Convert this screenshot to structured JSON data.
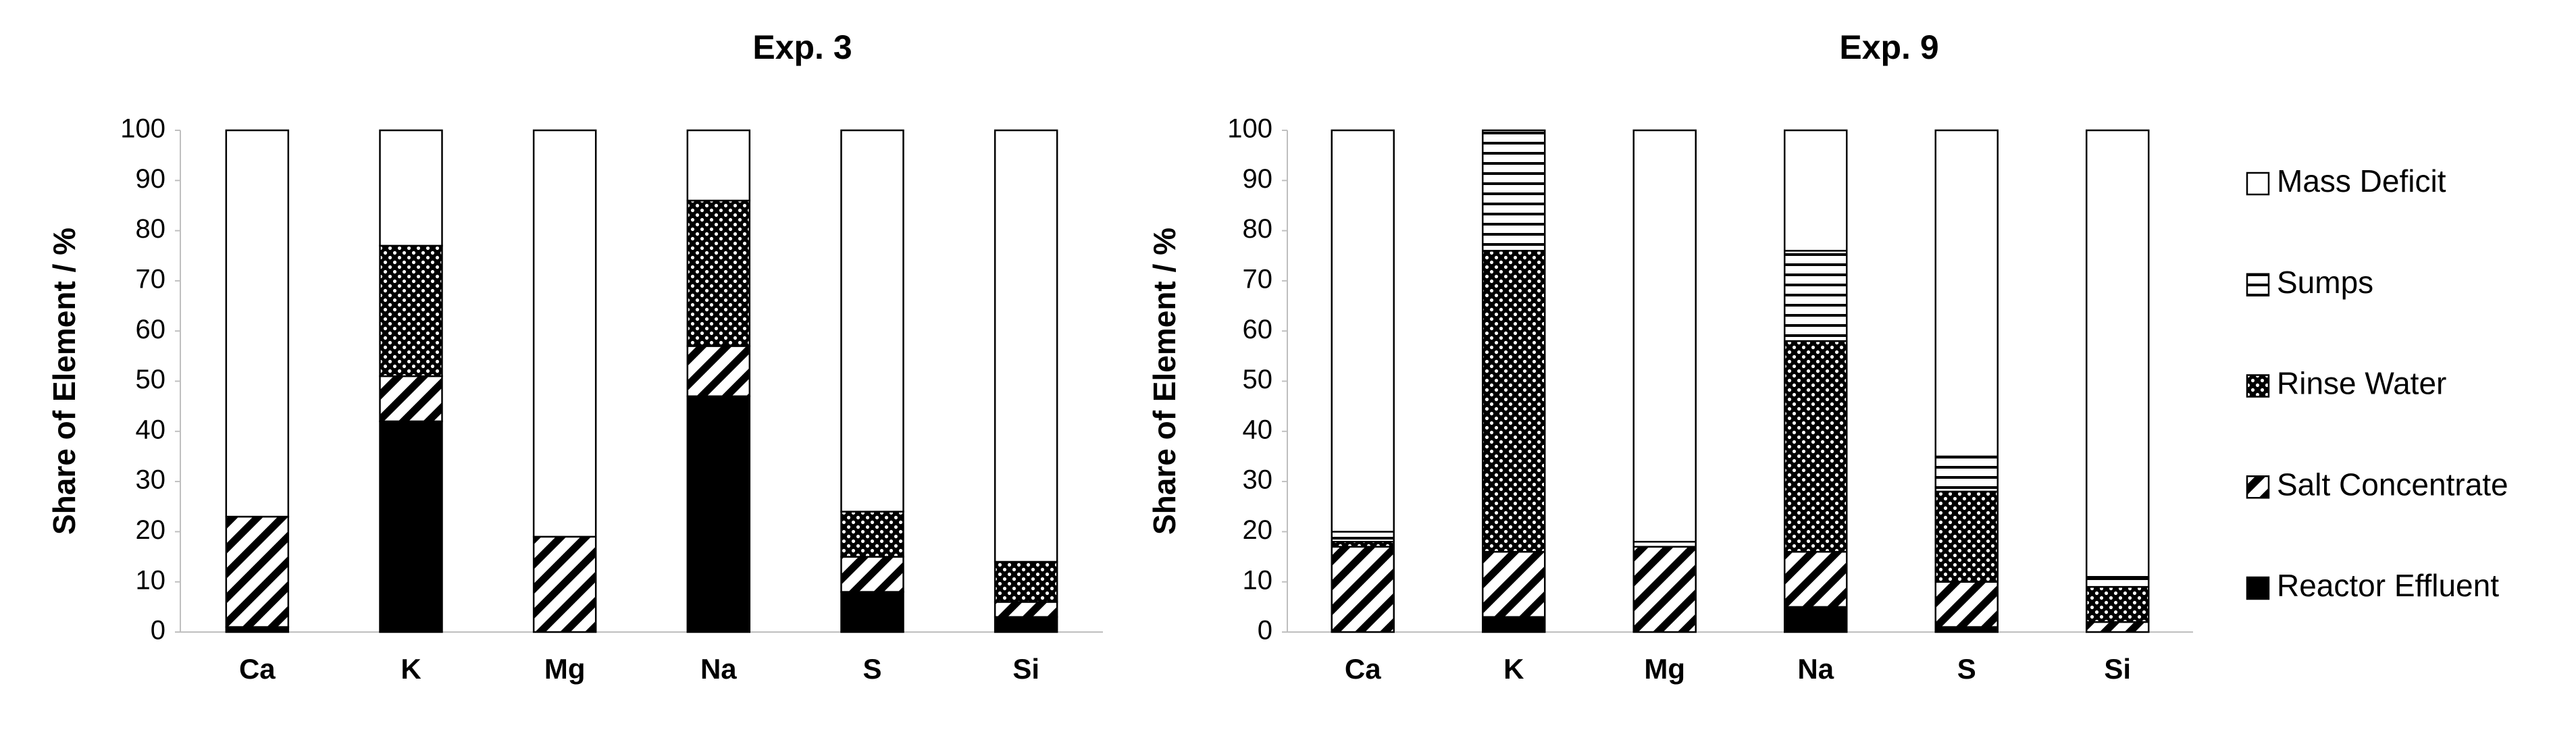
{
  "chart_data": [
    {
      "type": "stacked_bar",
      "title": "Exp. 3",
      "y_label": "Share of Element / %",
      "categories": [
        "Ca",
        "K",
        "Mg",
        "Na",
        "S",
        "Si"
      ],
      "ylim": [
        0,
        100
      ],
      "yticks": [
        0,
        10,
        20,
        30,
        40,
        50,
        60,
        70,
        80,
        90,
        100
      ],
      "series": [
        {
          "color": "#000000",
          "pattern": "solid",
          "values": [
            1,
            42,
            0,
            47,
            8,
            3
          ]
        },
        {
          "color": "#000000",
          "pattern": "diagonal",
          "values": [
            22,
            9,
            19,
            10,
            7,
            3
          ]
        },
        {
          "color": "#000000",
          "pattern": "dots",
          "values": [
            0,
            26,
            0,
            29,
            9,
            8
          ]
        },
        {
          "color": "#000000",
          "pattern": "horizontal",
          "values": [
            0,
            0,
            0,
            0,
            0,
            0
          ]
        },
        {
          "color": "#000000",
          "pattern": "none",
          "values": [
            77,
            23,
            81,
            14,
            76,
            86
          ]
        }
      ]
    },
    {
      "type": "stacked_bar",
      "title": "Exp. 9",
      "y_label": "Share of Element / %",
      "categories": [
        "Ca",
        "K",
        "Mg",
        "Na",
        "S",
        "Si"
      ],
      "ylim": [
        0,
        100
      ],
      "yticks": [
        0,
        10,
        20,
        30,
        40,
        50,
        60,
        70,
        80,
        90,
        100
      ],
      "legend": "right",
      "series": [
        {
          "name": "Reactor Effluent",
          "color": "#000000",
          "pattern": "solid",
          "values": [
            0,
            3,
            0,
            5,
            1,
            0
          ]
        },
        {
          "name": "Salt Concentrate",
          "color": "#000000",
          "pattern": "diagonal",
          "values": [
            17,
            13,
            17,
            11,
            9,
            2
          ]
        },
        {
          "name": "Rinse Water",
          "color": "#000000",
          "pattern": "dots",
          "values": [
            1,
            60,
            0,
            42,
            18,
            7
          ]
        },
        {
          "name": "Sumps",
          "color": "#000000",
          "pattern": "horizontal",
          "values": [
            2,
            24,
            1,
            18,
            7,
            2
          ]
        },
        {
          "name": "Mass Deficit",
          "color": "#000000",
          "pattern": "none",
          "values": [
            80,
            0,
            82,
            24,
            65,
            89
          ]
        }
      ]
    }
  ]
}
